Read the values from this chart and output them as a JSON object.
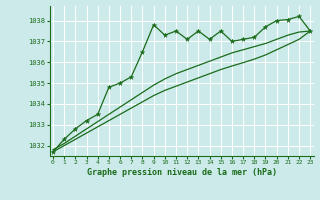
{
  "title": "Graphe pression niveau de la mer (hPa)",
  "background_color": "#cceaea",
  "grid_color": "#ffffff",
  "line_color": "#1a6b1a",
  "marker_color": "#1a6b1a",
  "hours": [
    0,
    1,
    2,
    3,
    4,
    5,
    6,
    7,
    8,
    9,
    10,
    11,
    12,
    13,
    14,
    15,
    16,
    17,
    18,
    19,
    20,
    21,
    22,
    23
  ],
  "pressure_main": [
    1031.7,
    1032.3,
    1032.8,
    1033.2,
    1033.5,
    1034.8,
    1035.0,
    1035.3,
    1036.5,
    1037.8,
    1037.3,
    1037.5,
    1037.1,
    1037.5,
    1037.1,
    1037.5,
    1037.0,
    1037.1,
    1037.2,
    1037.7,
    1038.0,
    1038.05,
    1038.2,
    1037.5
  ],
  "pressure_smooth1": [
    1031.8,
    1032.1,
    1032.45,
    1032.8,
    1033.15,
    1033.5,
    1033.85,
    1034.2,
    1034.55,
    1034.9,
    1035.2,
    1035.45,
    1035.65,
    1035.85,
    1036.05,
    1036.25,
    1036.45,
    1036.6,
    1036.75,
    1036.9,
    1037.1,
    1037.3,
    1037.45,
    1037.5
  ],
  "pressure_smooth2": [
    1031.7,
    1032.0,
    1032.3,
    1032.6,
    1032.9,
    1033.2,
    1033.5,
    1033.8,
    1034.1,
    1034.4,
    1034.65,
    1034.85,
    1035.05,
    1035.25,
    1035.45,
    1035.65,
    1035.82,
    1035.98,
    1036.15,
    1036.35,
    1036.6,
    1036.85,
    1037.1,
    1037.5
  ],
  "ylim": [
    1031.5,
    1038.7
  ],
  "yticks": [
    1032,
    1033,
    1034,
    1035,
    1036,
    1037,
    1038
  ],
  "xlim": [
    -0.3,
    23.3
  ],
  "xticks": [
    0,
    1,
    2,
    3,
    4,
    5,
    6,
    7,
    8,
    9,
    10,
    11,
    12,
    13,
    14,
    15,
    16,
    17,
    18,
    19,
    20,
    21,
    22,
    23
  ]
}
